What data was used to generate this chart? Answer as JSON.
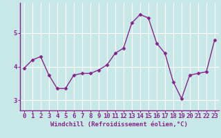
{
  "x": [
    0,
    1,
    2,
    3,
    4,
    5,
    6,
    7,
    8,
    9,
    10,
    11,
    12,
    13,
    14,
    15,
    16,
    17,
    18,
    19,
    20,
    21,
    22,
    23
  ],
  "y": [
    3.95,
    4.2,
    4.3,
    3.75,
    3.35,
    3.35,
    3.75,
    3.8,
    3.8,
    3.9,
    4.05,
    4.4,
    4.55,
    5.3,
    5.55,
    5.45,
    4.7,
    4.4,
    3.55,
    3.05,
    3.75,
    3.8,
    3.85,
    4.8
  ],
  "line_color": "#882288",
  "marker": "D",
  "marker_size": 2.5,
  "bg_color": "#c8e8e8",
  "grid_color": "#b0d8d8",
  "xlabel": "Windchill (Refroidissement éolien,°C)",
  "xlim_lo": -0.5,
  "xlim_hi": 23.5,
  "ylim_lo": 2.7,
  "ylim_hi": 5.9,
  "yticks": [
    3,
    4,
    5
  ],
  "xticks": [
    0,
    1,
    2,
    3,
    4,
    5,
    6,
    7,
    8,
    9,
    10,
    11,
    12,
    13,
    14,
    15,
    16,
    17,
    18,
    19,
    20,
    21,
    22,
    23
  ],
  "tick_color": "#882288",
  "xlabel_color": "#882288",
  "xlabel_fontsize": 6.5,
  "tick_fontsize": 6.5,
  "linewidth": 1.0
}
